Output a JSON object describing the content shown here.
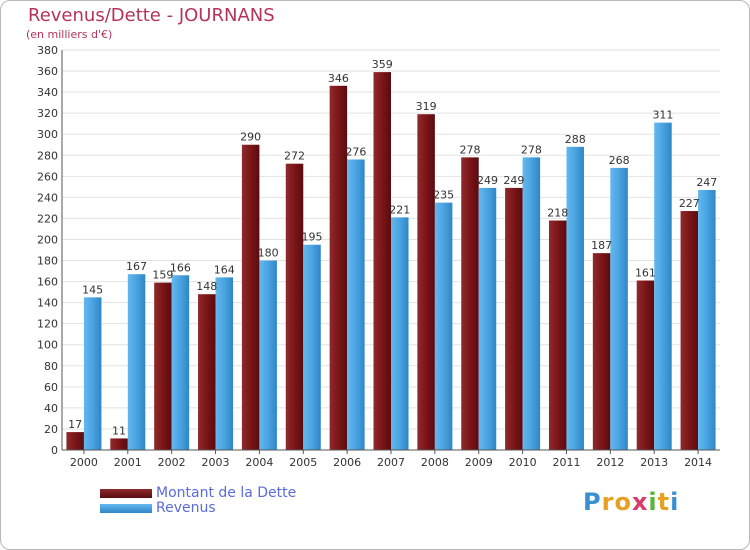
{
  "header": {
    "title": "Revenus/Dette - JOURNANS",
    "subtitle": "(en milliers d'€)"
  },
  "chart_data": {
    "type": "bar",
    "title": "Revenus/Dette - JOURNANS",
    "subtitle": "(en milliers d'€)",
    "categories": [
      "2000",
      "2001",
      "2002",
      "2003",
      "2004",
      "2005",
      "2006",
      "2007",
      "2008",
      "2009",
      "2010",
      "2011",
      "2012",
      "2013",
      "2014"
    ],
    "series": [
      {
        "name": "Montant de la Dette",
        "color": "#7a1518",
        "values": [
          17,
          11,
          159,
          148,
          290,
          272,
          346,
          359,
          319,
          278,
          249,
          218,
          187,
          161,
          227
        ]
      },
      {
        "name": "Revenus",
        "color": "#4aa3e0",
        "values": [
          145,
          167,
          166,
          164,
          180,
          195,
          276,
          221,
          235,
          249,
          278,
          288,
          268,
          311,
          247
        ]
      }
    ],
    "ylim": [
      0,
      380
    ],
    "ytick_step": 20,
    "grid": true,
    "legend_position": "bottom-left"
  },
  "legend": {
    "items": [
      {
        "label": "Montant de la Dette",
        "color": "#7a1518"
      },
      {
        "label": "Revenus",
        "color": "#4aa3e0"
      }
    ]
  },
  "logo": {
    "letters": [
      "P",
      "r",
      "o",
      "x",
      "i",
      "t",
      "i"
    ],
    "colors": [
      "#3a8fd0",
      "#e8a020",
      "#e8a020",
      "#d83a6a",
      "#57b53b",
      "#e8a020",
      "#3a8fd0"
    ]
  }
}
